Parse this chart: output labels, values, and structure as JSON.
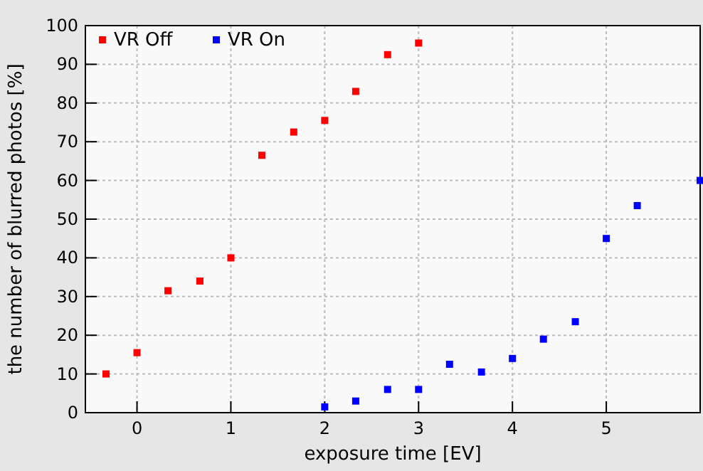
{
  "chart_data": {
    "type": "scatter",
    "xlabel": "exposure time [EV]",
    "ylabel": "the number of blurred photos [%]",
    "xlim": [
      -0.55,
      6.0
    ],
    "xticks": [
      0,
      1,
      2,
      3,
      4,
      5
    ],
    "ylim": [
      0,
      100
    ],
    "yticks": [
      0,
      10,
      20,
      30,
      40,
      50,
      60,
      70,
      80,
      90,
      100
    ],
    "grid": true,
    "legend": "top left",
    "marker": "square",
    "series": [
      {
        "name": "VR Off",
        "color": "#ff0000",
        "x": [
          -0.33,
          0,
          0.33,
          0.67,
          1,
          1.33,
          1.67,
          2,
          2.33,
          2.67,
          3
        ],
        "values": [
          10,
          15.5,
          31.5,
          34,
          40,
          66.5,
          72.5,
          75.5,
          83,
          92.5,
          95.5
        ]
      },
      {
        "name": "VR On",
        "color": "#0000ff",
        "x": [
          2,
          2.33,
          2.67,
          3,
          3.33,
          3.67,
          4,
          4.33,
          4.67,
          5,
          5.33,
          6
        ],
        "values": [
          1.5,
          3,
          6,
          6,
          12.5,
          10.5,
          14,
          19,
          23.5,
          45,
          53.5,
          60
        ]
      }
    ]
  }
}
